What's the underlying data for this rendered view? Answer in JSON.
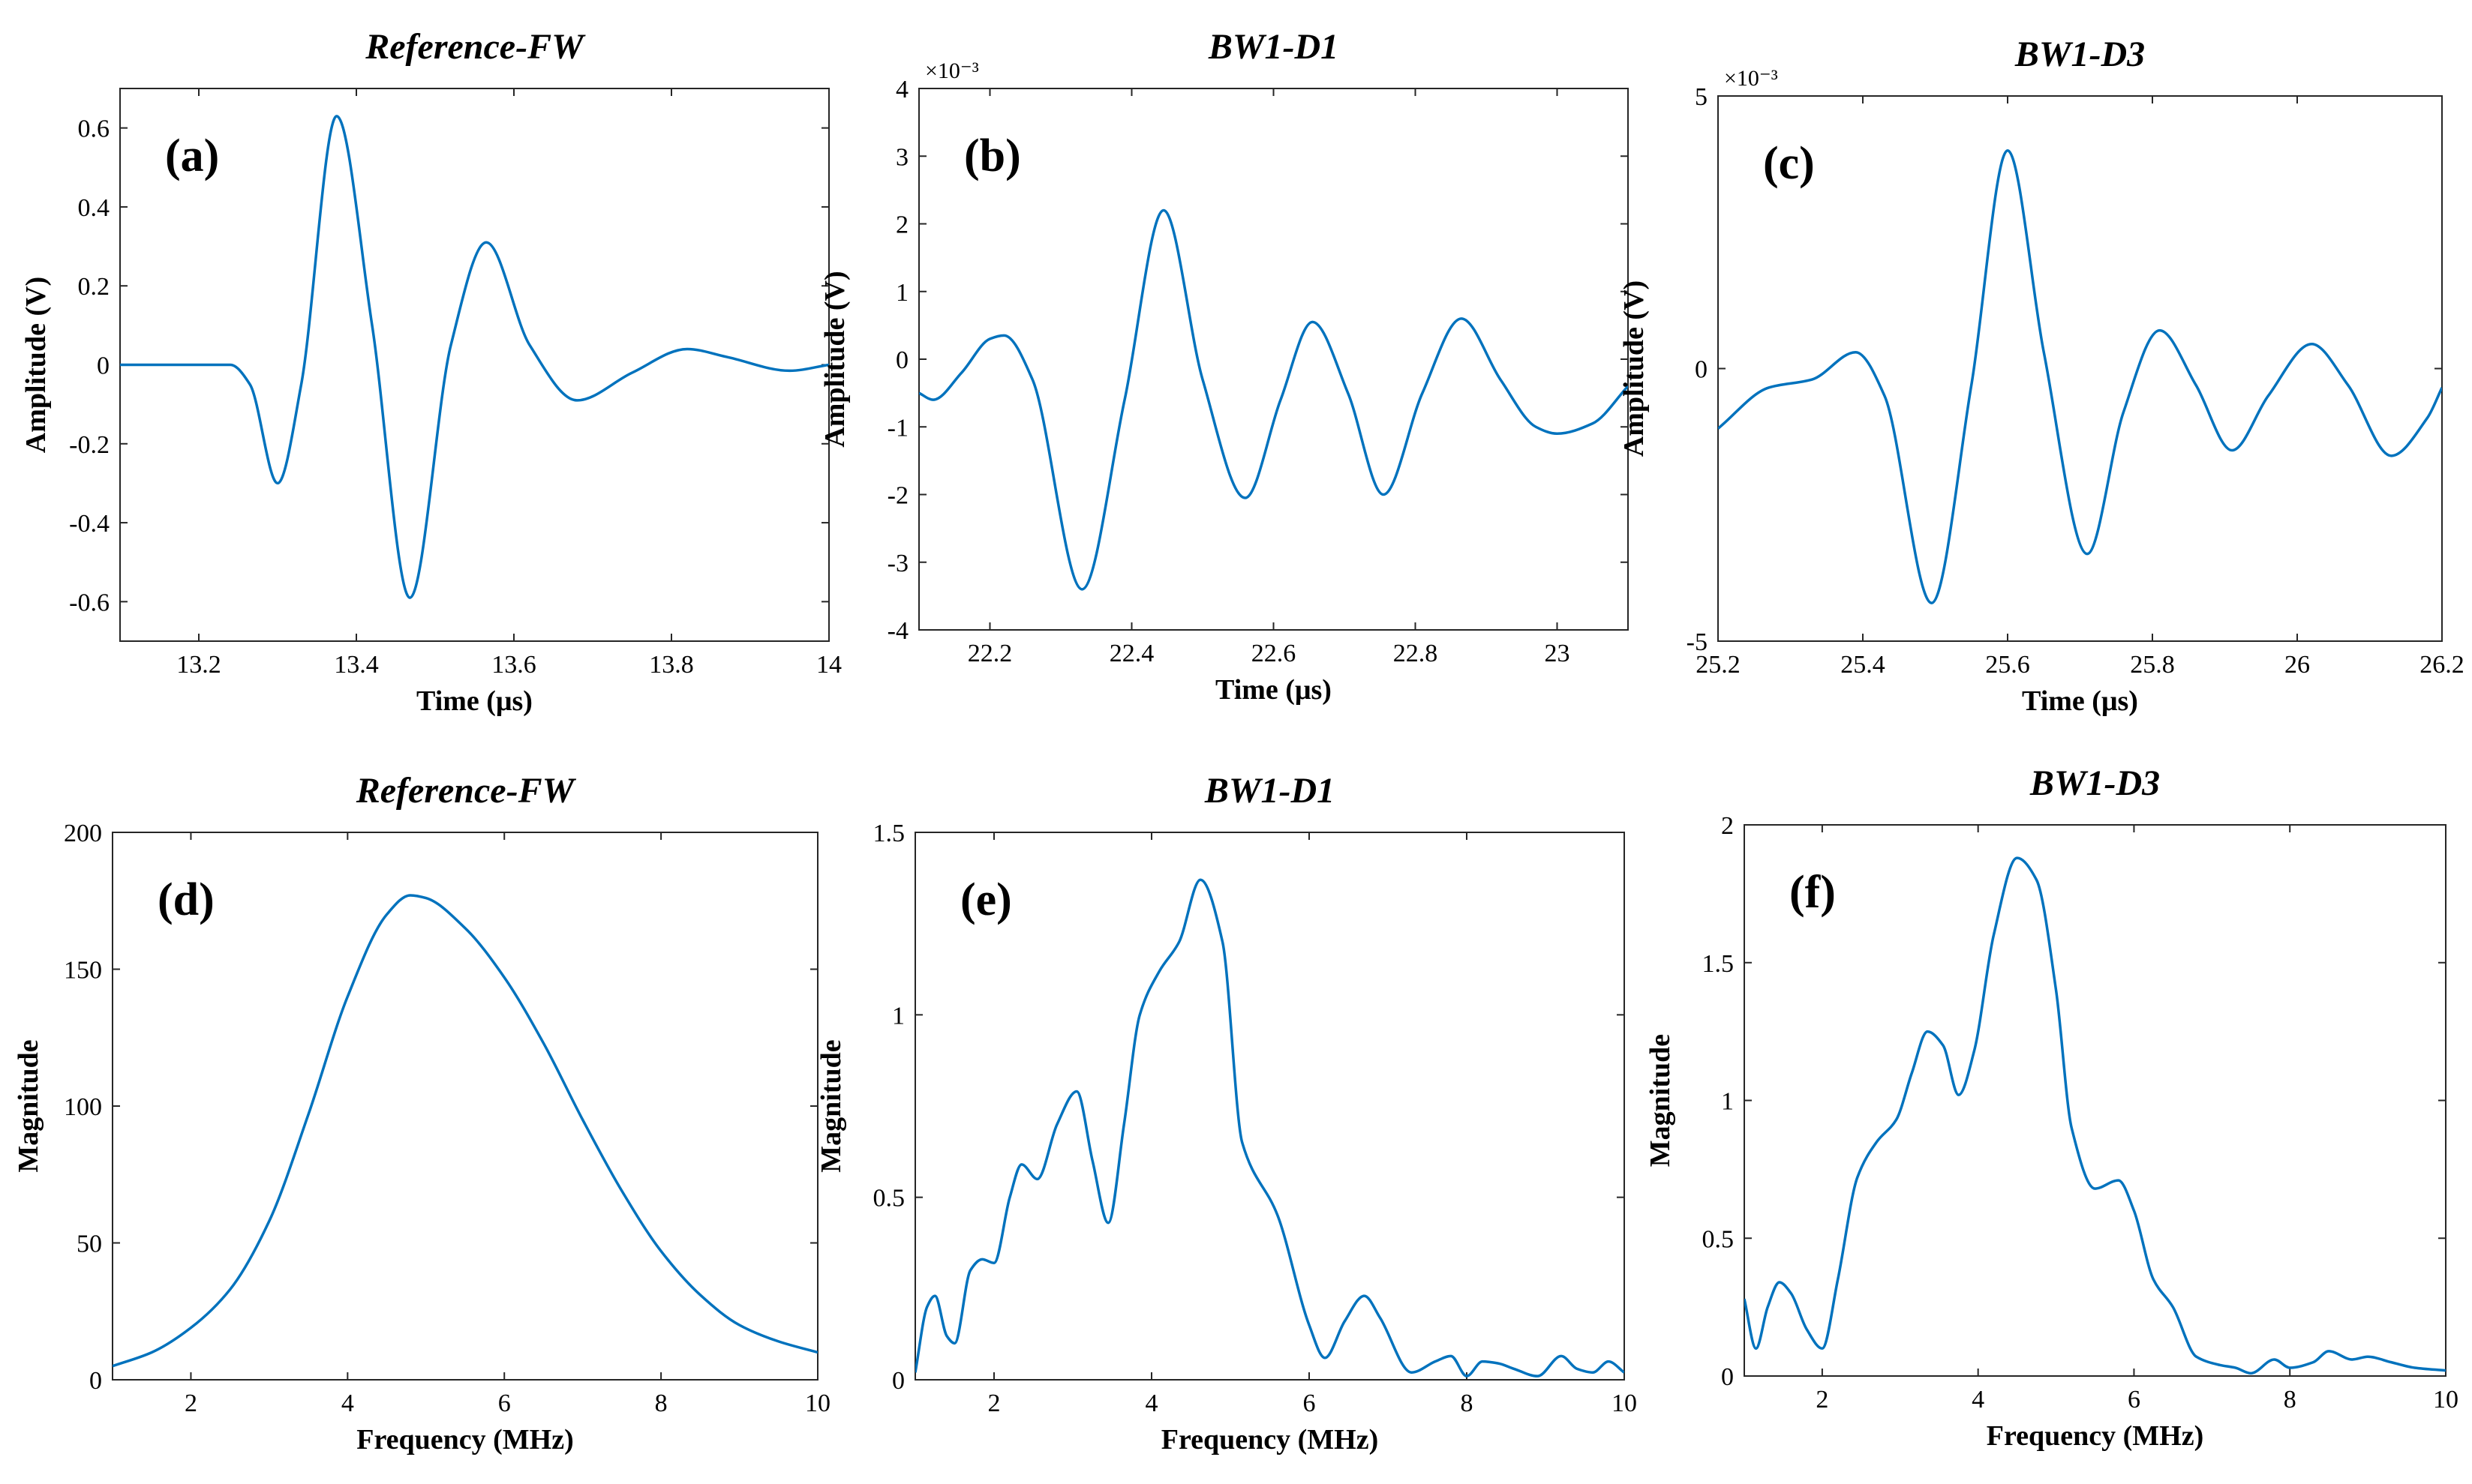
{
  "figure": {
    "line_color": "#0072BD",
    "axes_color": "#262626"
  },
  "chart_data": [
    {
      "type": "line",
      "panel": "(a)",
      "title": "Reference-FW",
      "xlabel": "Time (μs)",
      "ylabel": "Amplitude (V)",
      "xlim": [
        13.1,
        14.0
      ],
      "ylim": [
        -0.7,
        0.7
      ],
      "xticks": [
        13.2,
        13.4,
        13.6,
        13.8,
        14.0
      ],
      "xtick_labels": [
        "13.2",
        "13.4",
        "13.6",
        "13.8",
        "14"
      ],
      "yticks": [
        -0.6,
        -0.4,
        -0.2,
        0,
        0.2,
        0.4,
        0.6
      ],
      "ytick_labels": [
        "-0.6",
        "-0.4",
        "-0.2",
        "0",
        "0.2",
        "0.4",
        "0.6"
      ],
      "exponent": "",
      "series": [
        {
          "name": "Reference-FW",
          "x": [
            13.1,
            13.2,
            13.24,
            13.265,
            13.3,
            13.33,
            13.375,
            13.42,
            13.468,
            13.52,
            13.565,
            13.62,
            13.68,
            13.75,
            13.82,
            13.87,
            13.95,
            14.0
          ],
          "y": [
            0,
            0,
            0,
            -0.05,
            -0.3,
            -0.05,
            0.63,
            0.1,
            -0.59,
            0.05,
            0.31,
            0.05,
            -0.09,
            -0.02,
            0.04,
            0.02,
            -0.015,
            0
          ]
        }
      ]
    },
    {
      "type": "line",
      "panel": "(b)",
      "title": "BW1-D1",
      "xlabel": "Time (μs)",
      "ylabel": "Amplitude (V)",
      "xlim": [
        22.1,
        23.1
      ],
      "ylim": [
        -4,
        4
      ],
      "xticks": [
        22.2,
        22.4,
        22.6,
        22.8,
        23.0
      ],
      "xtick_labels": [
        "22.2",
        "22.4",
        "22.6",
        "22.8",
        "23"
      ],
      "yticks": [
        -4,
        -3,
        -2,
        -1,
        0,
        1,
        2,
        3,
        4
      ],
      "ytick_labels": [
        "-4",
        "-3",
        "-2",
        "-1",
        "0",
        "1",
        "2",
        "3",
        "4"
      ],
      "exponent": "×10⁻³",
      "series": [
        {
          "name": "BW1-D1",
          "x": [
            22.1,
            22.12,
            22.16,
            22.2,
            22.22,
            22.26,
            22.33,
            22.39,
            22.445,
            22.5,
            22.56,
            22.61,
            22.655,
            22.705,
            22.755,
            22.81,
            22.865,
            22.92,
            22.97,
            23.0,
            23.05,
            23.1
          ],
          "y": [
            -0.5,
            -0.6,
            -0.2,
            0.3,
            0.35,
            -0.3,
            -3.4,
            -0.6,
            2.2,
            -0.3,
            -2.05,
            -0.6,
            0.55,
            -0.5,
            -2.0,
            -0.5,
            0.6,
            -0.3,
            -1.0,
            -1.1,
            -0.95,
            -0.4
          ]
        }
      ]
    },
    {
      "type": "line",
      "panel": "(c)",
      "title": "BW1-D3",
      "xlabel": "Time (μs)",
      "ylabel": "Amplitude (V)",
      "xlim": [
        25.2,
        26.2
      ],
      "ylim": [
        -5,
        5
      ],
      "xticks": [
        25.2,
        25.4,
        25.6,
        25.8,
        26.0,
        26.2
      ],
      "xtick_labels": [
        "25.2",
        "25.4",
        "25.6",
        "25.8",
        "26",
        "26.2"
      ],
      "yticks": [
        -5,
        0,
        5
      ],
      "ytick_labels": [
        "-5",
        "0",
        "5"
      ],
      "exponent": "×10⁻³",
      "series": [
        {
          "name": "BW1-D3",
          "x": [
            25.2,
            25.27,
            25.33,
            25.39,
            25.43,
            25.495,
            25.55,
            25.6,
            25.65,
            25.71,
            25.76,
            25.81,
            25.86,
            25.91,
            25.96,
            26.02,
            26.07,
            26.13,
            26.18,
            26.2
          ],
          "y": [
            -1.1,
            -0.35,
            -0.2,
            0.3,
            -0.5,
            -4.3,
            -0.3,
            4.0,
            0.3,
            -3.4,
            -0.8,
            0.7,
            -0.3,
            -1.5,
            -0.5,
            0.45,
            -0.3,
            -1.6,
            -0.9,
            -0.35
          ]
        }
      ]
    },
    {
      "type": "line",
      "panel": "(d)",
      "title": "Reference-FW",
      "xlabel": "Frequency (MHz)",
      "ylabel": "Magnitude",
      "xlim": [
        1,
        10
      ],
      "ylim": [
        0,
        200
      ],
      "xticks": [
        2,
        4,
        6,
        8,
        10
      ],
      "xtick_labels": [
        "2",
        "4",
        "6",
        "8",
        "10"
      ],
      "yticks": [
        0,
        50,
        100,
        150,
        200
      ],
      "ytick_labels": [
        "0",
        "50",
        "100",
        "150",
        "200"
      ],
      "exponent": "",
      "series": [
        {
          "name": "Reference-FW",
          "x": [
            1,
            1.5,
            2,
            2.5,
            3,
            3.5,
            4,
            4.5,
            4.8,
            5,
            5.5,
            6,
            6.5,
            7,
            7.5,
            8,
            8.5,
            9,
            9.5,
            10
          ],
          "y": [
            5,
            10,
            19,
            33,
            58,
            97,
            140,
            170,
            177,
            176,
            165,
            147,
            123,
            95,
            69,
            47,
            31,
            20,
            14,
            10
          ]
        }
      ]
    },
    {
      "type": "line",
      "panel": "(e)",
      "title": "BW1-D1",
      "xlabel": "Frequency (MHz)",
      "ylabel": "Magnitude",
      "xlim": [
        1,
        10
      ],
      "ylim": [
        0,
        1.5
      ],
      "xticks": [
        2,
        4,
        6,
        8,
        10
      ],
      "xtick_labels": [
        "2",
        "4",
        "6",
        "8",
        "10"
      ],
      "yticks": [
        0,
        0.5,
        1,
        1.5
      ],
      "ytick_labels": [
        "0",
        "0.5",
        "1",
        "1.5"
      ],
      "exponent": "",
      "series": [
        {
          "name": "BW1-D1",
          "x": [
            1,
            1.15,
            1.25,
            1.4,
            1.5,
            1.7,
            1.85,
            2,
            2.2,
            2.35,
            2.55,
            2.8,
            3.05,
            3.25,
            3.45,
            3.65,
            3.85,
            4.1,
            4.35,
            4.62,
            4.9,
            5.15,
            5.6,
            6.0,
            6.2,
            6.45,
            6.7,
            6.9,
            7.3,
            7.6,
            7.8,
            8.0,
            8.2,
            8.4,
            8.6,
            8.9,
            9.2,
            9.4,
            9.6,
            9.8,
            10
          ],
          "y": [
            0.02,
            0.2,
            0.23,
            0.12,
            0.1,
            0.3,
            0.33,
            0.32,
            0.5,
            0.59,
            0.55,
            0.7,
            0.79,
            0.6,
            0.43,
            0.7,
            1.0,
            1.12,
            1.2,
            1.37,
            1.2,
            0.65,
            0.45,
            0.15,
            0.06,
            0.16,
            0.23,
            0.17,
            0.02,
            0.05,
            0.065,
            0.01,
            0.05,
            0.045,
            0.03,
            0.01,
            0.065,
            0.03,
            0.02,
            0.05,
            0.02
          ]
        }
      ]
    },
    {
      "type": "line",
      "panel": "(f)",
      "title": "BW1-D3",
      "xlabel": "Frequency (MHz)",
      "ylabel": "Magnitude",
      "xlim": [
        1,
        10
      ],
      "ylim": [
        0,
        2
      ],
      "xticks": [
        2,
        4,
        6,
        8,
        10
      ],
      "xtick_labels": [
        "2",
        "4",
        "6",
        "8",
        "10"
      ],
      "yticks": [
        0,
        0.5,
        1,
        1.5,
        2
      ],
      "ytick_labels": [
        "0",
        "0.5",
        "1",
        "1.5",
        "2"
      ],
      "exponent": "",
      "series": [
        {
          "name": "BW1-D3",
          "x": [
            1,
            1.15,
            1.3,
            1.45,
            1.6,
            1.8,
            2.0,
            2.2,
            2.45,
            2.7,
            2.95,
            3.15,
            3.35,
            3.55,
            3.75,
            3.95,
            4.2,
            4.5,
            4.75,
            5.0,
            5.2,
            5.5,
            5.8,
            6.0,
            6.25,
            6.5,
            6.8,
            7.1,
            7.3,
            7.5,
            7.8,
            8.0,
            8.3,
            8.5,
            8.8,
            9.0,
            9.3,
            9.6,
            10
          ],
          "y": [
            0.28,
            0.1,
            0.25,
            0.34,
            0.3,
            0.17,
            0.1,
            0.35,
            0.72,
            0.85,
            0.93,
            1.1,
            1.25,
            1.2,
            1.02,
            1.18,
            1.6,
            1.88,
            1.8,
            1.4,
            0.9,
            0.68,
            0.71,
            0.6,
            0.35,
            0.25,
            0.07,
            0.04,
            0.03,
            0.01,
            0.06,
            0.03,
            0.05,
            0.09,
            0.06,
            0.07,
            0.05,
            0.03,
            0.02
          ]
        }
      ]
    }
  ]
}
